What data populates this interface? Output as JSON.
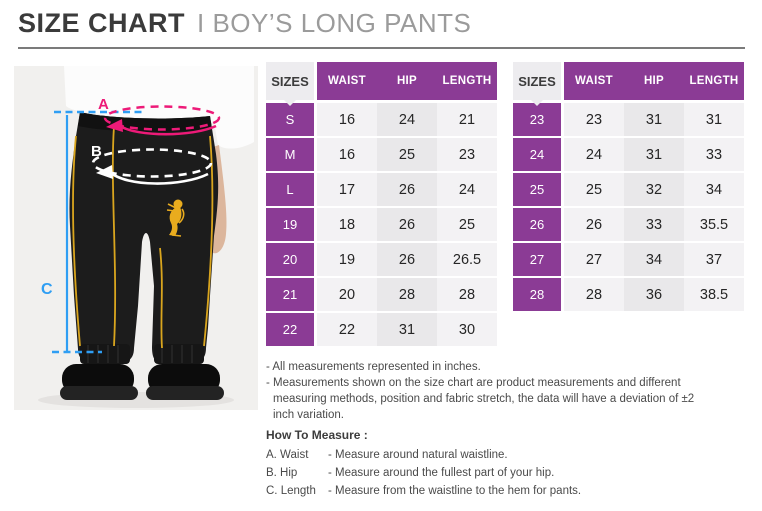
{
  "header": {
    "title": "SIZE CHART",
    "divider": "I",
    "subtitle": "BOY’S LONG PANTS"
  },
  "photo": {
    "description": "boy wearing black long pants with gold piping and gold lion logo",
    "labels": {
      "a": "A",
      "b": "B",
      "c": "C"
    }
  },
  "tables": [
    {
      "corner": "SIZES",
      "headers": [
        "WAIST",
        "HIP",
        "LENGTH"
      ],
      "rows": [
        {
          "size": "S",
          "values": [
            "16",
            "24",
            "21"
          ]
        },
        {
          "size": "M",
          "values": [
            "16",
            "25",
            "23"
          ]
        },
        {
          "size": "L",
          "values": [
            "17",
            "26",
            "24"
          ]
        },
        {
          "size": "19",
          "values": [
            "18",
            "26",
            "25"
          ]
        },
        {
          "size": "20",
          "values": [
            "19",
            "26",
            "26.5"
          ]
        },
        {
          "size": "21",
          "values": [
            "20",
            "28",
            "28"
          ]
        },
        {
          "size": "22",
          "values": [
            "22",
            "31",
            "30"
          ]
        }
      ]
    },
    {
      "corner": "SIZES",
      "headers": [
        "WAIST",
        "HIP",
        "LENGTH"
      ],
      "rows": [
        {
          "size": "23",
          "values": [
            "23",
            "31",
            "31"
          ]
        },
        {
          "size": "24",
          "values": [
            "24",
            "31",
            "33"
          ]
        },
        {
          "size": "25",
          "values": [
            "25",
            "32",
            "34"
          ]
        },
        {
          "size": "26",
          "values": [
            "26",
            "33",
            "35.5"
          ]
        },
        {
          "size": "27",
          "values": [
            "27",
            "34",
            "37"
          ]
        },
        {
          "size": "28",
          "values": [
            "28",
            "36",
            "38.5"
          ]
        }
      ]
    }
  ],
  "notes": [
    "- All measurements represented in inches.",
    "- Measurements shown on the size chart are product measurements and different measuring methods, position and fabric stretch, the data will have a deviation of ±2 inch variation."
  ],
  "how_to_measure": {
    "heading": "How To Measure :",
    "items": [
      {
        "label": "A. Waist",
        "text": "- Measure around natural waistline."
      },
      {
        "label": "B. Hip",
        "text": "- Measure around the fullest part of your hip."
      },
      {
        "label": "C. Length",
        "text": "- Measure from the waistline to the hem for pants."
      }
    ]
  },
  "colors": {
    "purple": "#8b3b95",
    "pink": "#ed1a78",
    "blue": "#2f9ef3",
    "gold": "#d9a51e"
  }
}
